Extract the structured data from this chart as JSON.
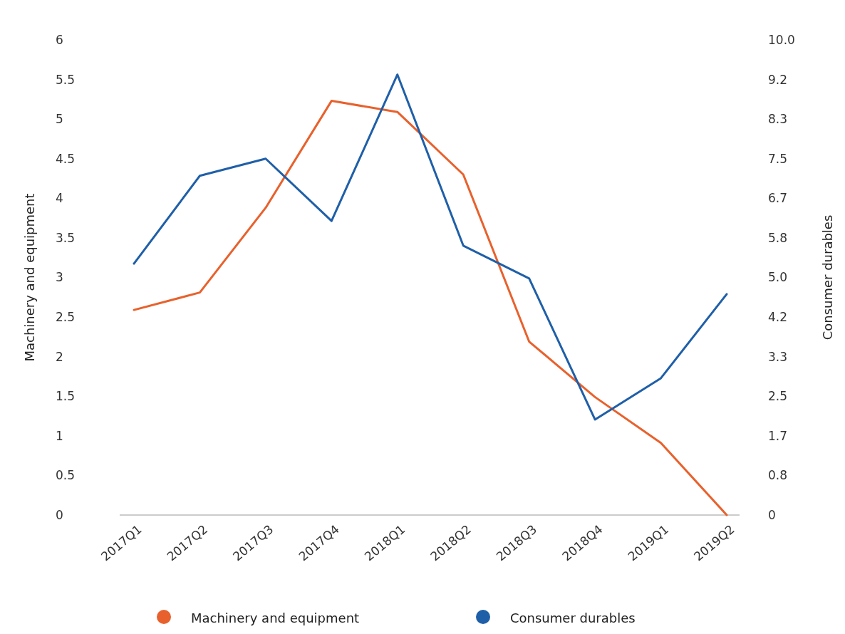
{
  "chart_data": {
    "type": "line",
    "ylabel": "Machinery and equipment",
    "y2label": "Consumer durables",
    "categories": [
      "2017Q1",
      "2017Q2",
      "2017Q3",
      "2017Q4",
      "2018Q1",
      "2018Q2",
      "2018Q3",
      "2018Q4",
      "2019Q1",
      "2019Q2"
    ],
    "series": [
      {
        "name": "Machinery and equipment",
        "color": "#e8612c",
        "values": [
          2.59,
          2.81,
          3.88,
          5.23,
          5.09,
          4.3,
          2.19,
          1.49,
          0.91,
          0
        ]
      },
      {
        "name": "Consumer durables",
        "color": "#1f5fa8",
        "axis": "y2",
        "values": [
          5.29,
          7.14,
          7.5,
          6.19,
          9.27,
          5.67,
          4.98,
          2.01,
          2.88,
          4.65
        ]
      }
    ],
    "ylim": [
      0,
      6
    ],
    "yticks": [
      0,
      0.5,
      1,
      1.5,
      2,
      2.5,
      3,
      3.5,
      4,
      4.5,
      5,
      5.5,
      6
    ],
    "y2lim": [
      0,
      10
    ],
    "y2ticks": [
      0,
      {
        "value": 0.8333,
        "label": "0.8"
      },
      {
        "value": 1.6667,
        "label": "1.7"
      },
      {
        "value": 2.5,
        "label": "2.5"
      },
      {
        "value": 3.3333,
        "label": "3.3"
      },
      {
        "value": 4.1667,
        "label": "4.2"
      },
      {
        "value": 5,
        "label": "5.0"
      },
      {
        "value": 5.8333,
        "label": "5.8"
      },
      {
        "value": 6.6667,
        "label": "6.7"
      },
      {
        "value": 7.5,
        "label": "7.5"
      },
      {
        "value": 8.3333,
        "label": "8.3"
      },
      {
        "value": 9.1667,
        "label": "9.2"
      },
      {
        "value": 10,
        "label": "10.0"
      }
    ],
    "legend": "bottom",
    "grid": false
  }
}
